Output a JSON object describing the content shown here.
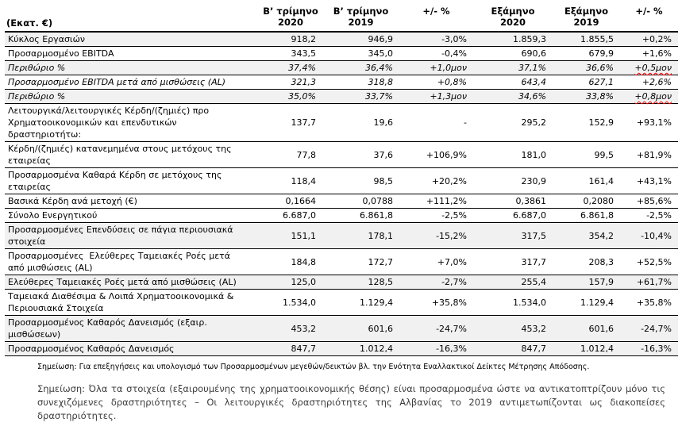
{
  "table": {
    "unit_label": "(Εκατ. €)",
    "columns": [
      "Β’ τρίμηνο\n2020",
      "Β’ τρίμηνο\n2019",
      "+/- %",
      "Εξάμηνο\n2020",
      "Εξάμηνο\n2019",
      "+/- %"
    ],
    "rows": [
      {
        "label": "Κύκλος Εργασιών",
        "values": [
          "918,2",
          "946,9",
          "-3,0%",
          "1.859,3",
          "1.855,5",
          "+0,2%"
        ],
        "italic": false,
        "shaded": true,
        "squiggle_last": false
      },
      {
        "label": "Προσαρμοσμένο EBITDA",
        "values": [
          "343,5",
          "345,0",
          "-0,4%",
          "690,6",
          "679,9",
          "+1,6%"
        ],
        "italic": false,
        "shaded": false,
        "squiggle_last": false
      },
      {
        "label": "Περιθώριο %",
        "values": [
          "37,4%",
          "36,4%",
          "+1,0μον",
          "37,1%",
          "36,6%",
          "+0,5μον"
        ],
        "italic": true,
        "shaded": true,
        "squiggle_last": true
      },
      {
        "label": "Προσαρμοσμένο EBITDA μετά από μισθώσεις (AL)",
        "values": [
          "321,3",
          "318,8",
          "+0,8%",
          "643,4",
          "627,1",
          "+2,6%"
        ],
        "italic": true,
        "shaded": false,
        "squiggle_last": false
      },
      {
        "label": "Περιθώριο %",
        "values": [
          "35,0%",
          "33,7%",
          "+1,3μον",
          "34,6%",
          "33,8%",
          "+0,8μον"
        ],
        "italic": true,
        "shaded": true,
        "squiggle_last": true
      },
      {
        "label": "Λειτουργικά/λειτουργικές Κέρδη/(ζημιές) προ\nΧρηματοοικονομικών και επενδυτικών δραστηριοτήτω:",
        "values": [
          "137,7",
          "19,6",
          "-",
          "295,2",
          "152,9",
          "+93,1%"
        ],
        "italic": false,
        "shaded": false,
        "squiggle_last": false
      },
      {
        "label": "Κέρδη/(ζημιές) κατανεμημένα στους μετόχους της\nεταιρείας",
        "values": [
          "77,8",
          "37,6",
          "+106,9%",
          "181,0",
          "99,5",
          "+81,9%"
        ],
        "italic": false,
        "shaded": false,
        "squiggle_last": false
      },
      {
        "label": "Προσαρμοσμένα Καθαρά Κέρδη σε μετόχους της\nεταιρείας",
        "values": [
          "118,4",
          "98,5",
          "+20,2%",
          "230,9",
          "161,4",
          "+43,1%"
        ],
        "italic": false,
        "shaded": false,
        "squiggle_last": false
      },
      {
        "label": "Βασικά Κέρδη ανά μετοχή (€)",
        "values": [
          "0,1664",
          "0,0788",
          "+111,2%",
          "0,3861",
          "0,2080",
          "+85,6%"
        ],
        "italic": false,
        "shaded": false,
        "squiggle_last": false
      },
      {
        "label": "Σύνολο Ενεργητικού",
        "values": [
          "6.687,0",
          "6.861,8",
          "-2,5%",
          "6.687,0",
          "6.861,8",
          "-2,5%"
        ],
        "italic": false,
        "shaded": false,
        "squiggle_last": false
      },
      {
        "label": "Προσαρμοσμένες Επενδύσεις σε πάγια περιουσιακά\nστοιχεία",
        "values": [
          "151,1",
          "178,1",
          "-15,2%",
          "317,5",
          "354,2",
          "-10,4%"
        ],
        "italic": false,
        "shaded": true,
        "squiggle_last": false
      },
      {
        "label": "Προσαρμοσμένες  Ελεύθερες Ταμειακές Ροές μετά\nαπό μισθώσεις (AL)",
        "values": [
          "184,8",
          "172,7",
          "+7,0%",
          "317,7",
          "208,3",
          "+52,5%"
        ],
        "italic": false,
        "shaded": false,
        "squiggle_last": false
      },
      {
        "label": "Ελεύθερες Ταμειακές Ροές μετά από μισθώσεις (AL)",
        "values": [
          "125,0",
          "128,5",
          "-2,7%",
          "255,4",
          "157,9",
          "+61,7%"
        ],
        "italic": false,
        "shaded": true,
        "squiggle_last": false
      },
      {
        "label": "Ταμειακά Διαθέσιμα & Λοιπά Χρηματοοικονομικά &\nΠεριουσιακά Στοιχεία",
        "values": [
          "1.534,0",
          "1.129,4",
          "+35,8%",
          "1.534,0",
          "1.129,4",
          "+35,8%"
        ],
        "italic": false,
        "shaded": false,
        "squiggle_last": false
      },
      {
        "label": "Προσαρμοσμένος Καθαρός Δανεισμός (εξαιρ.\nμισθώσεων)",
        "values": [
          "453,2",
          "601,6",
          "-24,7%",
          "453,2",
          "601,6",
          "-24,7%"
        ],
        "italic": false,
        "shaded": true,
        "squiggle_last": false
      },
      {
        "label": "Προσαρμοσμένος Καθαρός Δανεισμός",
        "values": [
          "847,7",
          "1.012,4",
          "-16,3%",
          "847,7",
          "1.012,4",
          "-16,3%"
        ],
        "italic": false,
        "shaded": true,
        "squiggle_last": false
      }
    ]
  },
  "footnotes": {
    "small_note": "Σημείωση: Για επεξηγήσεις και υπολογισμό των Προσαρμοσμένων μεγεθών/δεικτών βλ. την Ενότητα Εναλλακτικοί Δείκτες Μέτρησης Απόδοσης.",
    "paragraph": "Σημείωση: Όλα τα στοιχεία (εξαιρουμένης της χρηματοοικονομικής θέσης) είναι προσαρμοσμένα ώστε να αντικατοπτρίζουν μόνο τις συνεχιζόμενες δραστηριότητες – Οι λειτουργικές δραστηριότητες της Αλβανίας το 2019 αντιμετωπίζονται ως διακοπείσες δραστηριότητες."
  },
  "colors": {
    "row_shade": "#f1f1f1",
    "spellcheck_squiggle": "#ff0000",
    "text": "#000000"
  }
}
